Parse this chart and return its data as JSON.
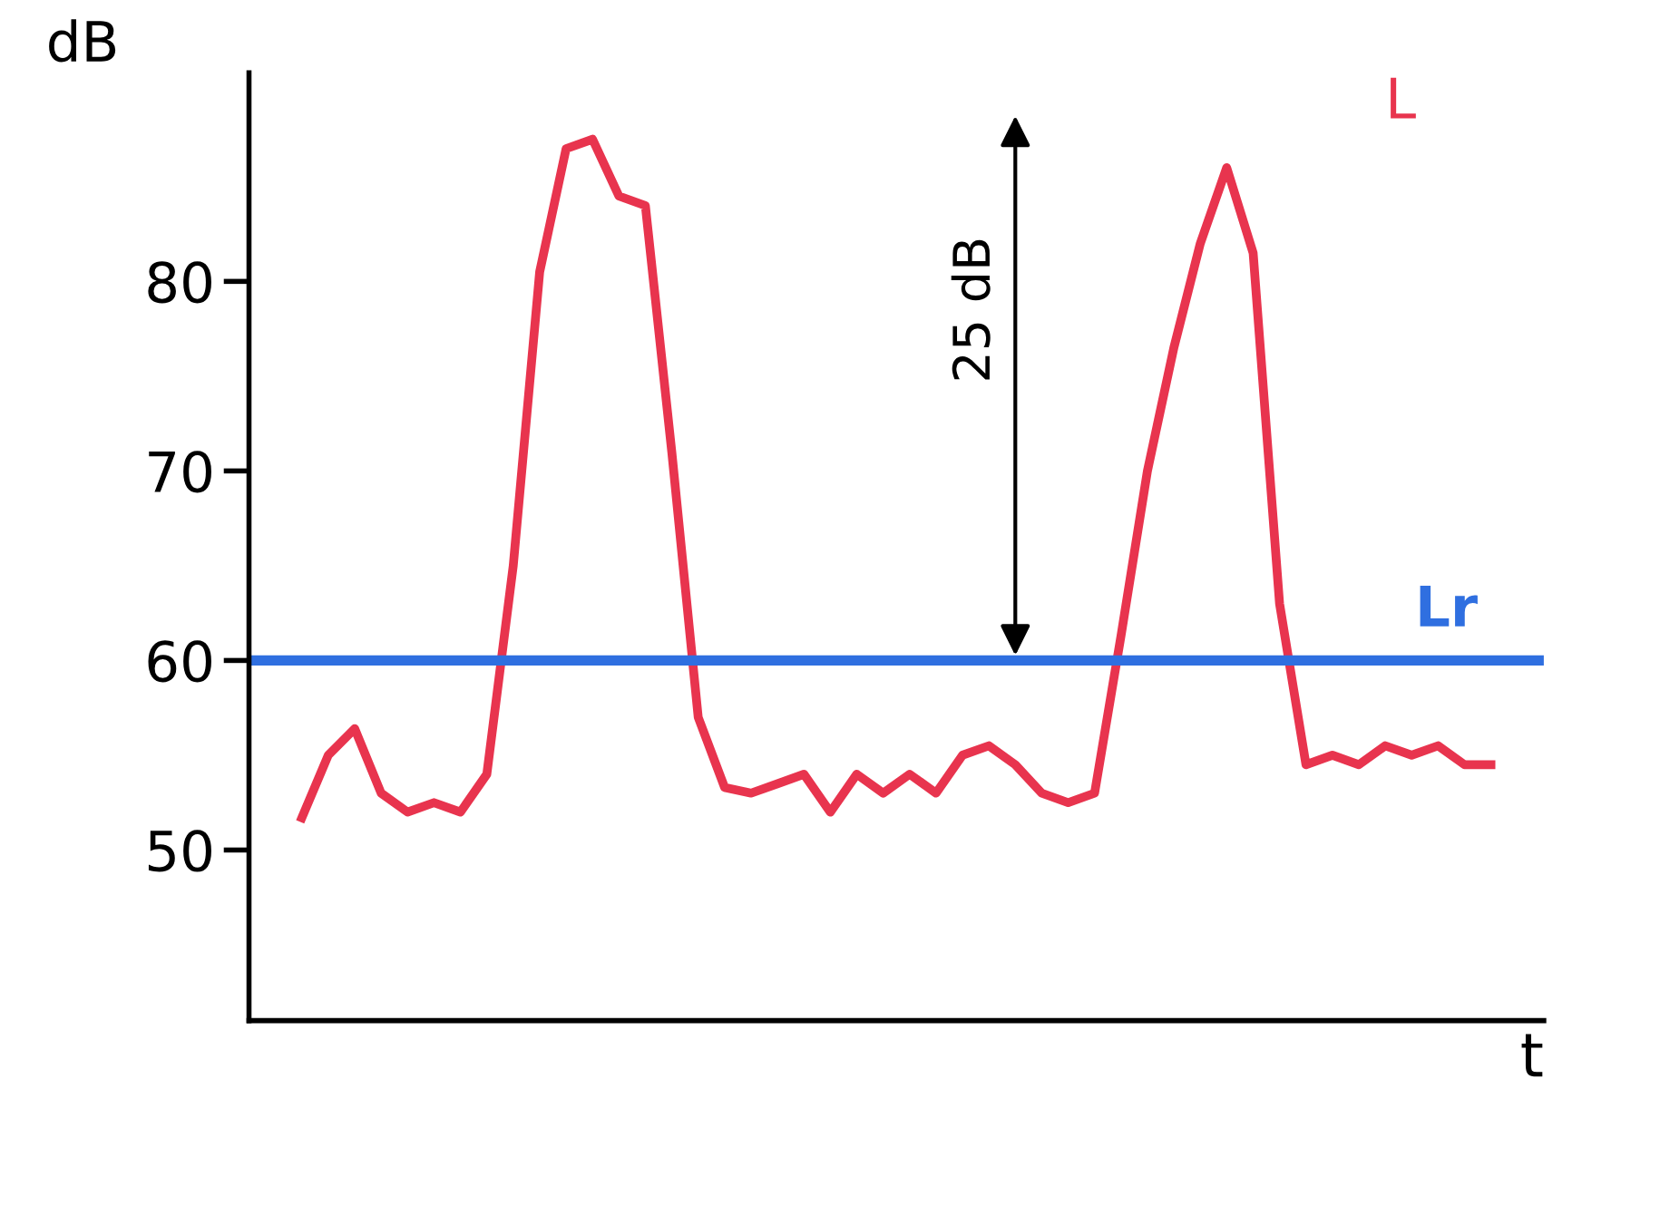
{
  "chart_data": {
    "type": "line",
    "ylabel": "dB",
    "xlabel": "t",
    "categories": [
      null,
      null,
      null,
      null,
      null,
      null,
      null,
      null,
      null,
      null,
      null,
      null,
      null,
      null,
      null,
      null,
      null,
      null,
      null,
      null,
      null,
      null,
      null,
      null,
      null,
      null,
      null,
      null,
      null,
      null,
      null,
      null,
      null,
      null,
      null,
      null,
      null,
      null,
      null,
      null,
      null,
      null,
      null,
      null,
      null,
      null
    ],
    "series": [
      {
        "name": "L",
        "color": "#e8344e",
        "values": [
          51.7,
          55,
          56.4,
          53,
          52,
          52.5,
          52,
          54,
          65,
          80.5,
          87,
          87.5,
          84.5,
          84,
          71,
          57,
          53.3,
          53,
          53.5,
          54,
          52,
          54,
          53,
          54,
          53,
          55,
          55.5,
          54.5,
          53,
          52.5,
          53,
          61.3,
          70,
          76.5,
          82,
          86,
          81.5,
          63,
          54.5,
          55,
          54.5,
          55.5,
          55,
          55.5,
          54.5,
          54.5
        ]
      }
    ],
    "ref_lines": [
      {
        "axis": "y",
        "value": 60,
        "label": "Lr",
        "color": "#2f6fe0"
      }
    ],
    "annotations": [
      "25 dB"
    ],
    "ylim": [
      41,
      91
    ],
    "yticks": [
      50,
      60,
      70,
      80
    ],
    "tick_labels": "y",
    "grid": false,
    "legend": false,
    "marker": "none",
    "line_style": "solid"
  }
}
